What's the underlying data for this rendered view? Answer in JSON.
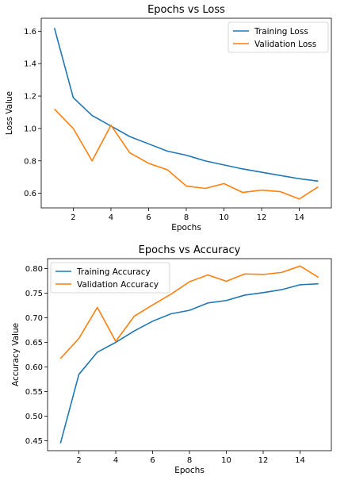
{
  "chart_data": [
    {
      "type": "line",
      "title": "Epochs vs Loss",
      "xlabel": "Epochs",
      "ylabel": "Loss Value",
      "x": [
        1,
        2,
        3,
        4,
        5,
        6,
        7,
        8,
        9,
        10,
        11,
        12,
        13,
        14,
        15
      ],
      "xlim": [
        0.3,
        15.7
      ],
      "ylim": [
        0.51,
        1.68
      ],
      "xticks": [
        2,
        4,
        6,
        8,
        10,
        12,
        14
      ],
      "yticks": [
        0.6,
        0.8,
        1.0,
        1.2,
        1.4,
        1.6
      ],
      "ytick_labels": [
        "0.6",
        "0.8",
        "1.0",
        "1.2",
        "1.4",
        "1.6"
      ],
      "legend_position": "top-right",
      "grid": false,
      "series": [
        {
          "name": "Training Loss",
          "color": "#1f77b4",
          "values": [
            1.62,
            1.19,
            1.08,
            1.015,
            0.95,
            0.905,
            0.86,
            0.835,
            0.8,
            0.775,
            0.75,
            0.73,
            0.71,
            0.69,
            0.675
          ]
        },
        {
          "name": "Validation Loss",
          "color": "#ff7f0e",
          "values": [
            1.12,
            1.0,
            0.8,
            1.02,
            0.85,
            0.785,
            0.745,
            0.645,
            0.63,
            0.66,
            0.605,
            0.62,
            0.61,
            0.565,
            0.64
          ]
        }
      ]
    },
    {
      "type": "line",
      "title": "Epochs vs Accuracy",
      "xlabel": "Epochs",
      "ylabel": "Accuracy Value",
      "x": [
        1,
        2,
        3,
        4,
        5,
        6,
        7,
        8,
        9,
        10,
        11,
        12,
        13,
        14,
        15
      ],
      "xlim": [
        0.3,
        15.7
      ],
      "ylim": [
        0.43,
        0.82
      ],
      "xticks": [
        2,
        4,
        6,
        8,
        10,
        12,
        14
      ],
      "yticks": [
        0.45,
        0.5,
        0.55,
        0.6,
        0.65,
        0.7,
        0.75,
        0.8
      ],
      "ytick_labels": [
        "0.45",
        "0.50",
        "0.55",
        "0.60",
        "0.65",
        "0.70",
        "0.75",
        "0.80"
      ],
      "legend_position": "top-left",
      "grid": false,
      "series": [
        {
          "name": "Training Accuracy",
          "color": "#1f77b4",
          "values": [
            0.445,
            0.585,
            0.63,
            0.65,
            0.673,
            0.693,
            0.708,
            0.715,
            0.73,
            0.735,
            0.746,
            0.751,
            0.757,
            0.767,
            0.769
          ]
        },
        {
          "name": "Validation Accuracy",
          "color": "#ff7f0e",
          "values": [
            0.617,
            0.658,
            0.721,
            0.652,
            0.703,
            0.726,
            0.748,
            0.773,
            0.787,
            0.774,
            0.789,
            0.788,
            0.792,
            0.805,
            0.782
          ]
        }
      ]
    }
  ]
}
